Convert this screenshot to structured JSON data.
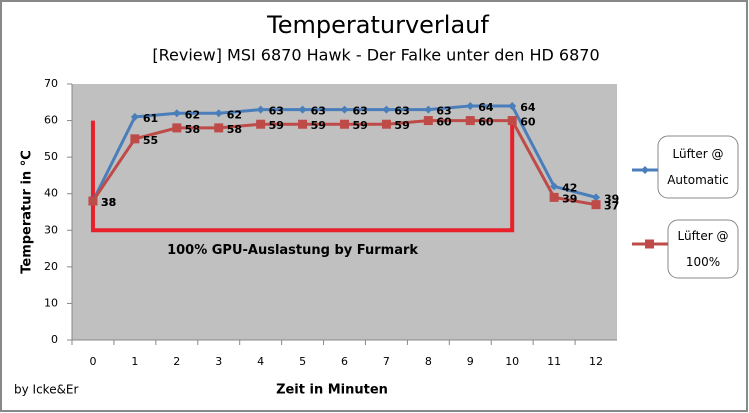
{
  "chart_data": {
    "type": "line",
    "title": "Temperaturverlauf",
    "subtitle": "[Review] MSI 6870 Hawk  - Der Falke unter den HD 6870",
    "x_label": "Zeit in Minuten",
    "y_label": "Temperatur in °C",
    "footer": "by Icke&Er",
    "categories": [
      "0",
      "1",
      "2",
      "3",
      "4",
      "5",
      "6",
      "7",
      "8",
      "9",
      "10",
      "11",
      "12"
    ],
    "series": [
      {
        "name": "Lüfter @ Automatic",
        "color": "#4a7ebb",
        "marker": "diamond",
        "values": [
          38,
          61,
          62,
          62,
          63,
          63,
          63,
          63,
          63,
          64,
          64,
          42,
          39
        ]
      },
      {
        "name": "Lüfter @ 100%",
        "color": "#be4b48",
        "marker": "square",
        "values": [
          38,
          55,
          58,
          58,
          59,
          59,
          59,
          59,
          60,
          60,
          60,
          39,
          37
        ]
      }
    ],
    "ylim": [
      0,
      70
    ],
    "yticks": [
      0,
      10,
      20,
      30,
      40,
      50,
      60,
      70
    ],
    "grid": false,
    "plot_background": "#c0c0c0",
    "highlight": {
      "from_category": 0,
      "to_category": 10,
      "ylim": [
        30,
        60
      ],
      "color": "#e8202a",
      "label": "100% GPU-Auslastung by Furmark"
    }
  }
}
